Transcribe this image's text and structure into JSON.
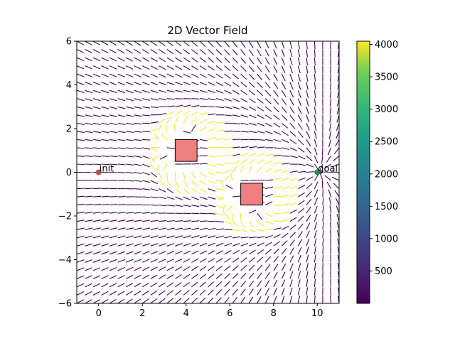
{
  "chart_data": {
    "type": "quiver",
    "title": "2D Vector Field",
    "xlim": [
      -1,
      11
    ],
    "ylim": [
      -6,
      6
    ],
    "x_ticks": [
      0,
      2,
      4,
      6,
      8,
      10
    ],
    "y_ticks": [
      -6,
      -4,
      -2,
      0,
      2,
      4,
      6
    ],
    "x_tick_labels": [
      "0",
      "2",
      "4",
      "6",
      "8",
      "10"
    ],
    "y_tick_labels": [
      "−6",
      "−4",
      "−2",
      "0",
      "2",
      "4",
      "6"
    ],
    "grid": false,
    "colormap": "viridis",
    "colorbar": {
      "range": [
        0,
        4050
      ],
      "ticks": [
        500,
        1000,
        1500,
        2000,
        2500,
        3000,
        3500,
        4000
      ],
      "tick_labels": [
        "500",
        "1000",
        "1500",
        "2000",
        "2500",
        "3000",
        "3500",
        "4000"
      ]
    },
    "points": [
      {
        "label": "init",
        "x": 0,
        "y": 0,
        "color": "#c0504d"
      },
      {
        "label": "goal",
        "x": 10,
        "y": 0,
        "color": "#2e8b57"
      }
    ],
    "obstacles": [
      {
        "x_range": [
          3.5,
          4.5
        ],
        "y_range": [
          0.5,
          1.5
        ],
        "color": "#f08080"
      },
      {
        "x_range": [
          6.5,
          7.5
        ],
        "y_range": [
          -1.5,
          -0.5
        ],
        "color": "#f08080"
      }
    ],
    "field": {
      "goal": [
        10,
        0
      ],
      "x_range": [
        -1,
        11
      ],
      "y_range": [
        -6,
        6
      ],
      "grid_step": 0.375
    }
  }
}
